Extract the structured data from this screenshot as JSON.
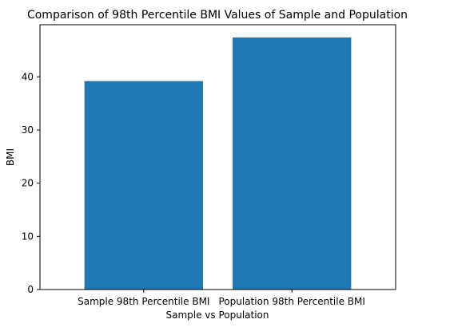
{
  "chart_data": {
    "type": "bar",
    "title": "Comparison of 98th Percentile BMI Values of Sample and Population",
    "xlabel": "Sample vs Population",
    "ylabel": "BMI",
    "categories": [
      "Sample 98th Percentile BMI",
      "Population 98th Percentile BMI"
    ],
    "values": [
      39.2,
      47.4
    ],
    "ylim": [
      0,
      49.8
    ],
    "yticks": [
      0,
      10,
      20,
      30,
      40
    ],
    "grid": false,
    "bar_color": "#1f77b4"
  }
}
